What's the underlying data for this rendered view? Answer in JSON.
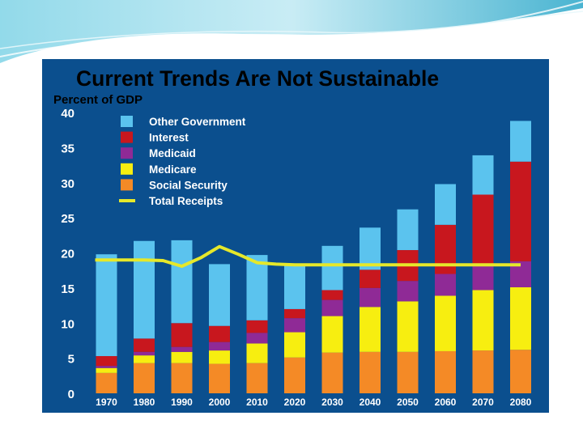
{
  "colors": {
    "panel": "#0b4f8e",
    "title": "#e9ee1b",
    "ylabel": "#e9ee1b",
    "other_government": "#5bc3ee",
    "interest": "#c8171e",
    "medicaid": "#8f2a96",
    "medicare": "#f7ee10",
    "social_security": "#f48a26",
    "total_receipts": "#e6e82a"
  },
  "chart_data": {
    "type": "bar",
    "stacked": true,
    "title": "Current Trends Are Not Sustainable",
    "ylabel": "Percent of GDP",
    "xlabel": "",
    "ylim": [
      0,
      40
    ],
    "yticks": [
      0,
      5,
      10,
      15,
      20,
      25,
      30,
      35,
      40
    ],
    "categories": [
      "1970",
      "1980",
      "1990",
      "2000",
      "2010",
      "2020",
      "2030",
      "2040",
      "2050",
      "2060",
      "2070",
      "2080"
    ],
    "series": [
      {
        "name": "Social Security",
        "key": "social_security",
        "values": [
          2.9,
          4.3,
          4.3,
          4.2,
          4.3,
          5.1,
          5.8,
          5.9,
          5.9,
          6.0,
          6.1,
          6.2
        ]
      },
      {
        "name": "Medicare",
        "key": "medicare",
        "values": [
          0.7,
          1.1,
          1.6,
          1.9,
          2.8,
          3.6,
          5.2,
          6.4,
          7.2,
          7.9,
          8.6,
          8.9
        ]
      },
      {
        "name": "Medicaid",
        "key": "medicaid",
        "values": [
          0.3,
          0.5,
          0.7,
          1.2,
          1.5,
          2.0,
          2.3,
          2.7,
          2.9,
          3.1,
          3.4,
          3.7
        ]
      },
      {
        "name": "Interest",
        "key": "interest",
        "values": [
          1.4,
          1.9,
          3.4,
          2.3,
          1.8,
          1.3,
          1.4,
          2.6,
          4.4,
          7.0,
          10.2,
          14.2
        ]
      },
      {
        "name": "Other Government",
        "key": "other_government",
        "values": [
          14.5,
          13.9,
          11.8,
          8.8,
          9.3,
          6.2,
          6.3,
          6.0,
          5.8,
          5.8,
          5.6,
          5.8
        ]
      }
    ],
    "line": {
      "name": "Total Receipts",
      "key": "total_receipts",
      "x": [
        1967,
        1975,
        1980,
        1985,
        1990,
        1995,
        2000,
        2005,
        2010,
        2015,
        2020,
        2030,
        2040,
        2050,
        2060,
        2070,
        2080
      ],
      "values": [
        19.0,
        19.0,
        19.0,
        18.9,
        18.1,
        19.3,
        20.9,
        19.8,
        18.6,
        18.4,
        18.3,
        18.3,
        18.3,
        18.3,
        18.3,
        18.3,
        18.3
      ]
    },
    "legend": [
      {
        "label": "Other Government",
        "key": "other_government",
        "kind": "box"
      },
      {
        "label": "Interest",
        "key": "interest",
        "kind": "box"
      },
      {
        "label": "Medicaid",
        "key": "medicaid",
        "kind": "box"
      },
      {
        "label": "Medicare",
        "key": "medicare",
        "kind": "box"
      },
      {
        "label": "Social Security",
        "key": "social_security",
        "kind": "box"
      },
      {
        "label": "Total Receipts",
        "key": "total_receipts",
        "kind": "line"
      }
    ],
    "legend_position": "top-left"
  }
}
